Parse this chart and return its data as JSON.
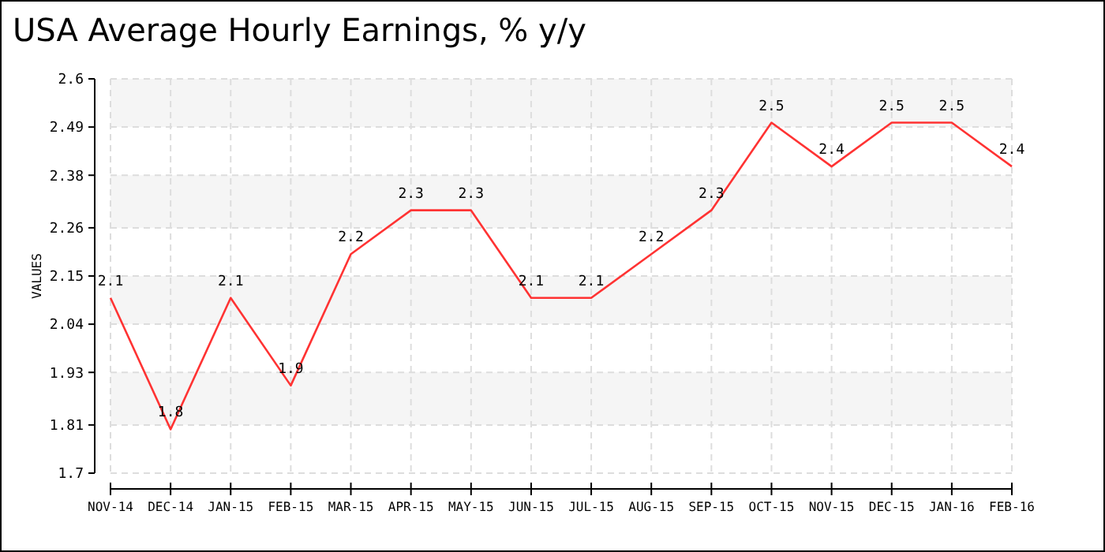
{
  "chart_data": {
    "type": "line",
    "title": "USA Average Hourly Earnings, % y/y",
    "ylabel": "VALUES",
    "categories": [
      "NOV-14",
      "DEC-14",
      "JAN-15",
      "FEB-15",
      "MAR-15",
      "APR-15",
      "MAY-15",
      "JUN-15",
      "JUL-15",
      "AUG-15",
      "SEP-15",
      "OCT-15",
      "NOV-15",
      "DEC-15",
      "JAN-16",
      "FEB-16"
    ],
    "series": [
      {
        "color": "#ff3333",
        "values": [
          2.1,
          1.8,
          2.1,
          1.9,
          2.2,
          2.3,
          2.3,
          2.1,
          2.1,
          2.2,
          2.3,
          2.5,
          2.4,
          2.5,
          2.5,
          2.4
        ]
      }
    ],
    "ylim": [
      1.7,
      2.6
    ],
    "yticks": [
      1.7,
      1.81,
      1.93,
      2.04,
      2.15,
      2.26,
      2.38,
      2.49,
      2.6
    ],
    "grid": true,
    "data_labels": true,
    "marker": "none",
    "line_style": "solid"
  }
}
